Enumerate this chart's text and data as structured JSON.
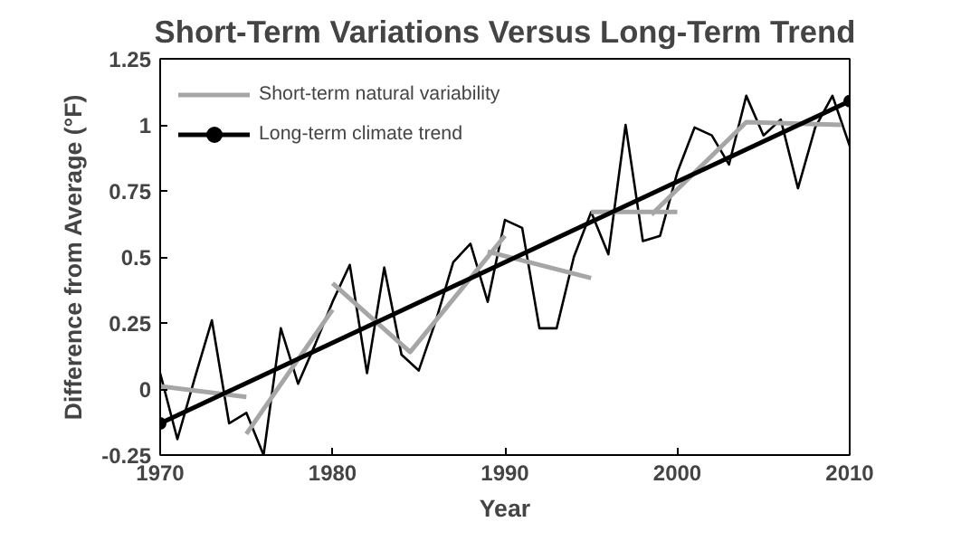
{
  "chart_data": {
    "type": "line",
    "title": "Short-Term Variations Versus Long-Term Trend",
    "xlabel": "Year",
    "ylabel": "Difference from Average (°F)",
    "xlim": [
      1970,
      2010
    ],
    "xticks": [
      1970,
      1980,
      1990,
      2000,
      2010
    ],
    "ylim": [
      -0.25,
      1.25
    ],
    "yticks": [
      -0.25,
      0,
      0.25,
      0.5,
      0.75,
      1,
      1.25
    ],
    "grid": false,
    "legend": "top left",
    "series": [
      {
        "color": "#000000",
        "x": [
          1970,
          1971,
          1972,
          1973,
          1974,
          1975,
          1976,
          1977,
          1978,
          1979,
          1980,
          1981,
          1982,
          1983,
          1984,
          1985,
          1986,
          1987,
          1988,
          1989,
          1990,
          1991,
          1992,
          1993,
          1994,
          1995,
          1996,
          1997,
          1998,
          1999,
          2000,
          2001,
          2002,
          2003,
          2004,
          2005,
          2006,
          2007,
          2008,
          2009,
          2010
        ],
        "values": [
          0.06,
          -0.19,
          0.04,
          0.26,
          -0.13,
          -0.09,
          -0.25,
          0.23,
          0.02,
          0.17,
          0.33,
          0.47,
          0.06,
          0.46,
          0.13,
          0.07,
          0.26,
          0.48,
          0.55,
          0.33,
          0.64,
          0.61,
          0.23,
          0.23,
          0.5,
          0.67,
          0.51,
          1.0,
          0.56,
          0.58,
          0.82,
          0.99,
          0.96,
          0.85,
          1.11,
          0.96,
          1.02,
          0.76,
          0.99,
          1.11,
          0.92
        ]
      },
      {
        "name": "Short-term natural variability",
        "color": "#a6a6a6",
        "x": [
          1970,
          1975,
          null,
          1975,
          1980,
          null,
          1980,
          1984.5,
          1990,
          null,
          1989,
          1995,
          null,
          1995,
          2000,
          null,
          1998.5,
          2004,
          2009.5
        ],
        "values": [
          0.01,
          -0.03,
          null,
          -0.17,
          0.3,
          null,
          0.4,
          0.14,
          0.58,
          null,
          0.52,
          0.42,
          null,
          0.67,
          0.67,
          null,
          0.66,
          1.01,
          1.0
        ]
      },
      {
        "name": "Long-term climate trend",
        "color": "#000000",
        "x": [
          1970,
          2010
        ],
        "values": [
          -0.13,
          1.09
        ],
        "marker": "circle"
      }
    ]
  }
}
